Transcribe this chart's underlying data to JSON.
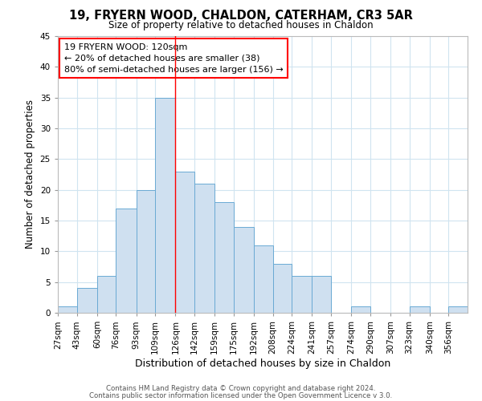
{
  "title": "19, FRYERN WOOD, CHALDON, CATERHAM, CR3 5AR",
  "subtitle": "Size of property relative to detached houses in Chaldon",
  "xlabel": "Distribution of detached houses by size in Chaldon",
  "ylabel": "Number of detached properties",
  "bar_color": "#cfe0f0",
  "bar_edge_color": "#6aaad4",
  "background_color": "#ffffff",
  "grid_color": "#d0e4f0",
  "bins": [
    "27sqm",
    "43sqm",
    "60sqm",
    "76sqm",
    "93sqm",
    "109sqm",
    "126sqm",
    "142sqm",
    "159sqm",
    "175sqm",
    "192sqm",
    "208sqm",
    "224sqm",
    "241sqm",
    "257sqm",
    "274sqm",
    "290sqm",
    "307sqm",
    "323sqm",
    "340sqm",
    "356sqm"
  ],
  "values": [
    1,
    4,
    6,
    17,
    20,
    35,
    23,
    21,
    18,
    14,
    11,
    8,
    6,
    6,
    0,
    1,
    0,
    0,
    1,
    0,
    1
  ],
  "bin_edges_numeric": [
    27,
    43,
    60,
    76,
    93,
    109,
    126,
    142,
    159,
    175,
    192,
    208,
    224,
    241,
    257,
    274,
    290,
    307,
    323,
    340,
    356,
    372
  ],
  "ylim": [
    0,
    45
  ],
  "yticks": [
    0,
    5,
    10,
    15,
    20,
    25,
    30,
    35,
    40,
    45
  ],
  "property_line_x": 126,
  "annotation_title": "19 FRYERN WOOD: 120sqm",
  "annotation_line1": "← 20% of detached houses are smaller (38)",
  "annotation_line2": "80% of semi-detached houses are larger (156) →",
  "footer1": "Contains HM Land Registry data © Crown copyright and database right 2024.",
  "footer2": "Contains public sector information licensed under the Open Government Licence v 3.0."
}
